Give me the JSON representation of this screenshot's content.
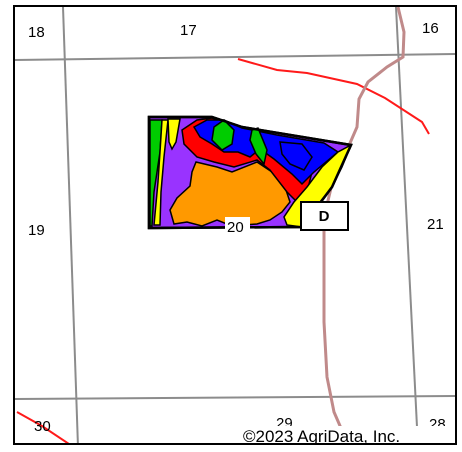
{
  "map": {
    "sections": [
      {
        "id": "s18",
        "label": "18"
      },
      {
        "id": "s17",
        "label": "17"
      },
      {
        "id": "s16",
        "label": "16"
      },
      {
        "id": "s19",
        "label": "19"
      },
      {
        "id": "s20",
        "label": "20"
      },
      {
        "id": "s21",
        "label": "21"
      },
      {
        "id": "s30",
        "label": "30"
      },
      {
        "id": "s29",
        "label": "29"
      },
      {
        "id": "s28",
        "label": "28"
      }
    ],
    "marker": {
      "label": "D"
    },
    "copyright": "©2023 AgriData, Inc.",
    "colors": {
      "section_line": "#8c8c8c",
      "road": "#c08a8a",
      "river": "#ff1a1a",
      "zone_purple": "#9933ff",
      "zone_blue": "#0000ff",
      "zone_orange": "#ff9900",
      "zone_yellow": "#ffff00",
      "zone_green": "#00cc00",
      "zone_red": "#ff0000",
      "zone_outline": "#000000"
    }
  }
}
